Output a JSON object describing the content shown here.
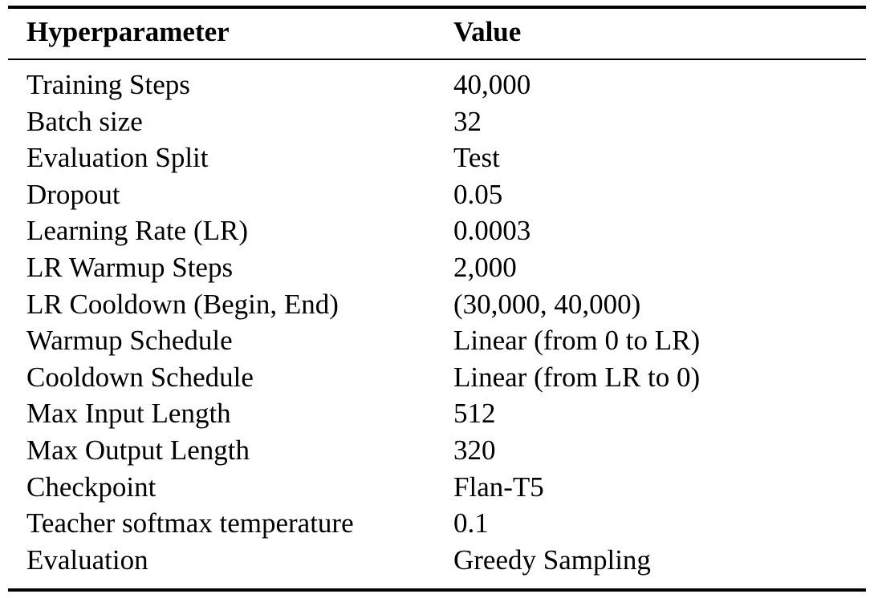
{
  "table": {
    "headers": [
      "Hyperparameter",
      "Value"
    ],
    "rows": [
      [
        "Training Steps",
        "40,000"
      ],
      [
        "Batch size",
        "32"
      ],
      [
        "Evaluation Split",
        "Test"
      ],
      [
        "Dropout",
        "0.05"
      ],
      [
        "Learning Rate (LR)",
        "0.0003"
      ],
      [
        "LR Warmup Steps",
        "2,000"
      ],
      [
        "LR Cooldown (Begin, End)",
        "(30,000, 40,000)"
      ],
      [
        "Warmup Schedule",
        "Linear (from 0 to LR)"
      ],
      [
        "Cooldown Schedule",
        "Linear (from LR to 0)"
      ],
      [
        "Max Input Length",
        "512"
      ],
      [
        "Max Output Length",
        "320"
      ],
      [
        "Checkpoint",
        "Flan-T5"
      ],
      [
        "Teacher softmax temperature",
        "0.1"
      ],
      [
        "Evaluation",
        "Greedy Sampling"
      ]
    ]
  }
}
